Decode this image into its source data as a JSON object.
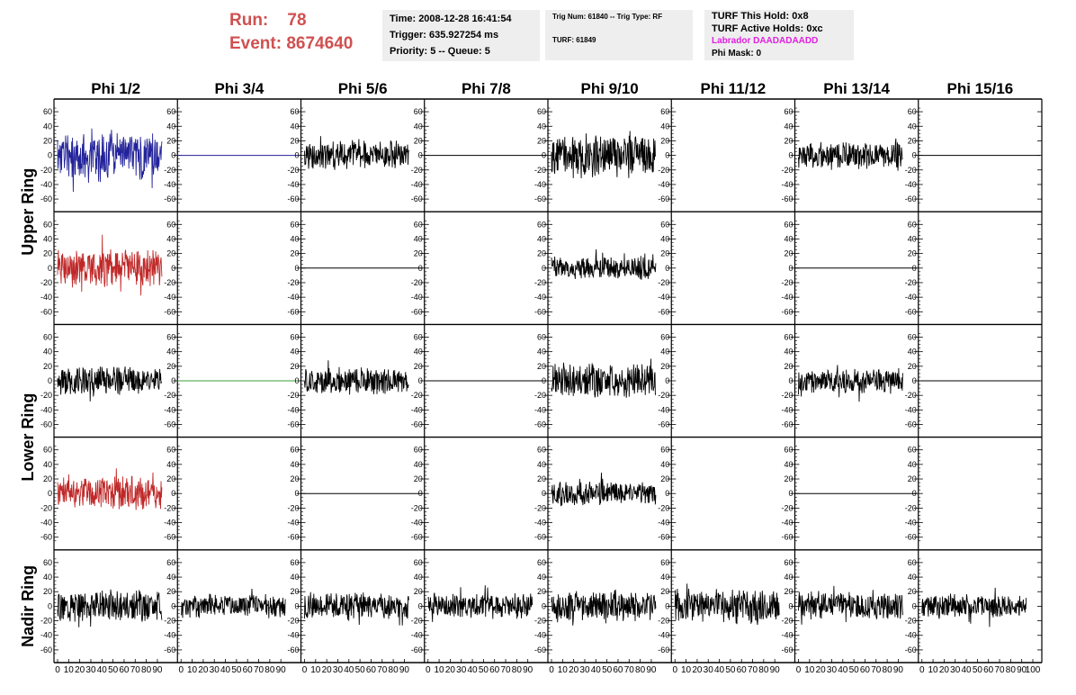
{
  "header": {
    "run_label": "Run:",
    "run_value": "78",
    "event_label": "Event:",
    "event_value": "8674640",
    "time": "Time: 2008-12-28 16:41:54",
    "trigger": "Trigger: 635.927254 ms",
    "priority": "Priority: 5 -- Queue: 5",
    "trig_num": "Trig Num: 61840 -- Trig Type: RF",
    "turf": "TURF: 61849",
    "turf_this_hold": "TURF This Hold: 0x8",
    "turf_active_holds": "TURF Active Holds: 0xc",
    "labrador": "Labrador DAADADAADD",
    "phi_mask": "Phi Mask: 0"
  },
  "colors": {
    "red_text": "#d05050",
    "magenta_text": "#e020e0",
    "blue_trace": "#22229a",
    "red_trace": "#c02828",
    "green_trace": "#3aa03a",
    "black_trace": "#000000",
    "info_bg": "#eeeeee"
  },
  "chart_data": {
    "type": "line",
    "description_grid": "5 rows x 8 columns of waveform panels",
    "columns": [
      "Phi 1/2",
      "Phi 3/4",
      "Phi 5/6",
      "Phi 7/8",
      "Phi 9/10",
      "Phi 11/12",
      "Phi 13/14",
      "Phi 15/16"
    ],
    "row_groups": [
      {
        "label": "Upper Ring",
        "rows": [
          0,
          1
        ]
      },
      {
        "label": "Lower Ring",
        "rows": [
          2,
          3
        ]
      },
      {
        "label": "Nadir Ring",
        "rows": [
          4
        ]
      }
    ],
    "xlim": [
      0,
      100
    ],
    "ylim": [
      -70,
      70
    ],
    "y_ticks": [
      -60,
      -40,
      -20,
      0,
      20,
      40,
      60
    ],
    "x_tick_labels": [
      "0",
      "10",
      "20",
      "30",
      "40",
      "50",
      "60",
      "70",
      "80",
      "90",
      "100"
    ],
    "grid": false,
    "panels": [
      [
        {
          "col": 0,
          "style": "noise",
          "color": "blue",
          "amplitude": 38,
          "seed": 11
        },
        {
          "col": 1,
          "style": "flat",
          "color": "blue"
        },
        {
          "col": 2,
          "style": "noise",
          "color": "black",
          "amplitude": 22,
          "seed": 12
        },
        {
          "col": 3,
          "style": "flat",
          "color": "black"
        },
        {
          "col": 4,
          "style": "noise",
          "color": "black",
          "amplitude": 32,
          "seed": 13
        },
        {
          "col": 5,
          "style": "none",
          "color": "black"
        },
        {
          "col": 6,
          "style": "noise",
          "color": "black",
          "amplitude": 20,
          "seed": 14
        },
        {
          "col": 7,
          "style": "flat",
          "color": "black"
        }
      ],
      [
        {
          "col": 0,
          "style": "noise",
          "color": "red",
          "amplitude": 30,
          "seed": 21
        },
        {
          "col": 1,
          "style": "none",
          "color": "black"
        },
        {
          "col": 2,
          "style": "flat",
          "color": "black"
        },
        {
          "col": 3,
          "style": "none",
          "color": "black"
        },
        {
          "col": 4,
          "style": "noise",
          "color": "black",
          "amplitude": 18,
          "seed": 23
        },
        {
          "col": 5,
          "style": "none",
          "color": "black"
        },
        {
          "col": 6,
          "style": "flat",
          "color": "black"
        },
        {
          "col": 7,
          "style": "none",
          "color": "black"
        }
      ],
      [
        {
          "col": 0,
          "style": "noise",
          "color": "black",
          "amplitude": 22,
          "seed": 31
        },
        {
          "col": 1,
          "style": "flat",
          "color": "green"
        },
        {
          "col": 2,
          "style": "noise",
          "color": "black",
          "amplitude": 20,
          "seed": 32
        },
        {
          "col": 3,
          "style": "flat",
          "color": "black"
        },
        {
          "col": 4,
          "style": "noise",
          "color": "black",
          "amplitude": 26,
          "seed": 33
        },
        {
          "col": 5,
          "style": "none",
          "color": "black"
        },
        {
          "col": 6,
          "style": "noise",
          "color": "black",
          "amplitude": 18,
          "seed": 34
        },
        {
          "col": 7,
          "style": "flat",
          "color": "black"
        }
      ],
      [
        {
          "col": 0,
          "style": "noise",
          "color": "red",
          "amplitude": 26,
          "seed": 41
        },
        {
          "col": 1,
          "style": "none",
          "color": "black"
        },
        {
          "col": 2,
          "style": "flat",
          "color": "black"
        },
        {
          "col": 3,
          "style": "none",
          "color": "black"
        },
        {
          "col": 4,
          "style": "noise",
          "color": "black",
          "amplitude": 18,
          "seed": 43
        },
        {
          "col": 5,
          "style": "none",
          "color": "black"
        },
        {
          "col": 6,
          "style": "flat",
          "color": "black"
        },
        {
          "col": 7,
          "style": "none",
          "color": "black"
        }
      ],
      [
        {
          "col": 0,
          "style": "noise",
          "color": "black",
          "amplitude": 24,
          "seed": 51
        },
        {
          "col": 1,
          "style": "noise",
          "color": "black",
          "amplitude": 18,
          "seed": 52
        },
        {
          "col": 2,
          "style": "noise",
          "color": "black",
          "amplitude": 20,
          "seed": 53
        },
        {
          "col": 3,
          "style": "noise",
          "color": "black",
          "amplitude": 20,
          "seed": 54
        },
        {
          "col": 4,
          "style": "noise",
          "color": "black",
          "amplitude": 22,
          "seed": 55
        },
        {
          "col": 5,
          "style": "noise",
          "color": "black",
          "amplitude": 26,
          "seed": 56
        },
        {
          "col": 6,
          "style": "noise",
          "color": "black",
          "amplitude": 22,
          "seed": 57
        },
        {
          "col": 7,
          "style": "noise",
          "color": "black",
          "amplitude": 18,
          "seed": 58
        }
      ]
    ]
  }
}
